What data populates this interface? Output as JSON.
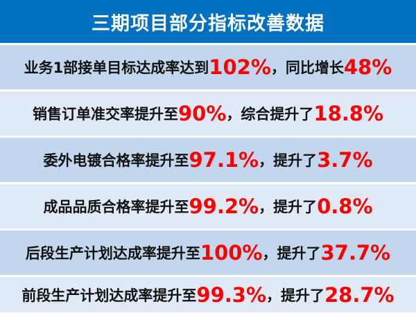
{
  "title": "三期项目部分指标改善数据",
  "colors": {
    "header": "#0070c0",
    "row_dark": "#c2d7ed",
    "row_light": "#dfeaf6",
    "highlight": "#ff0000"
  },
  "rows": [
    {
      "parts": [
        {
          "text": "业务1部接单目标达成率达到",
          "highlight": false
        },
        {
          "text": "102%",
          "highlight": true
        },
        {
          "text": "，同比增长",
          "highlight": false
        },
        {
          "text": "48%",
          "highlight": true
        }
      ]
    },
    {
      "parts": [
        {
          "text": "销售订单准交率提升至",
          "highlight": false
        },
        {
          "text": "90%",
          "highlight": true
        },
        {
          "text": "，综合提升了",
          "highlight": false
        },
        {
          "text": "18.8%",
          "highlight": true
        }
      ]
    },
    {
      "parts": [
        {
          "text": "委外电镀合格率提升至",
          "highlight": false
        },
        {
          "text": "97.1%",
          "highlight": true
        },
        {
          "text": "，提升了",
          "highlight": false
        },
        {
          "text": "3.7%",
          "highlight": true
        }
      ]
    },
    {
      "parts": [
        {
          "text": "成品品质合格率提升至",
          "highlight": false
        },
        {
          "text": "99.2%",
          "highlight": true
        },
        {
          "text": "，提升了",
          "highlight": false
        },
        {
          "text": "0.8%",
          "highlight": true
        }
      ]
    },
    {
      "parts": [
        {
          "text": "后段生产计划达成率提升至",
          "highlight": false
        },
        {
          "text": "100%",
          "highlight": true
        },
        {
          "text": "，提升了",
          "highlight": false
        },
        {
          "text": "37.7%",
          "highlight": true
        }
      ]
    },
    {
      "parts": [
        {
          "text": "前段生产计划达成率提升至",
          "highlight": false
        },
        {
          "text": "99.3%",
          "highlight": true
        },
        {
          "text": "，提升了",
          "highlight": false
        },
        {
          "text": "28.7%",
          "highlight": true
        }
      ]
    }
  ]
}
